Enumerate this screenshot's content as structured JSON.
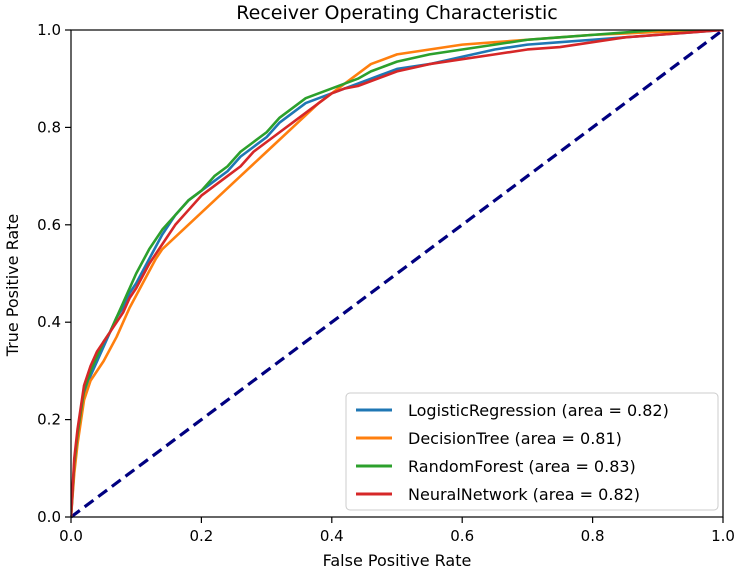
{
  "chart_data": {
    "type": "line",
    "title": "Receiver Operating Characteristic",
    "xlabel": "False Positive Rate",
    "ylabel": "True Positive Rate",
    "xlim": [
      0.0,
      1.0
    ],
    "ylim": [
      0.0,
      1.0
    ],
    "xticks": [
      "0.0",
      "0.2",
      "0.4",
      "0.6",
      "0.8",
      "1.0"
    ],
    "yticks": [
      "0.0",
      "0.2",
      "0.4",
      "0.6",
      "0.8",
      "1.0"
    ],
    "grid": false,
    "legend_position": "lower-right",
    "series": [
      {
        "name": "LogisticRegression (area = 0.82)",
        "color": "#1f77b4",
        "x": [
          0.0,
          0.005,
          0.01,
          0.02,
          0.03,
          0.04,
          0.05,
          0.06,
          0.07,
          0.08,
          0.09,
          0.1,
          0.12,
          0.14,
          0.16,
          0.18,
          0.2,
          0.22,
          0.24,
          0.26,
          0.28,
          0.3,
          0.32,
          0.34,
          0.36,
          0.38,
          0.4,
          0.42,
          0.44,
          0.46,
          0.48,
          0.5,
          0.55,
          0.6,
          0.65,
          0.7,
          0.75,
          0.8,
          0.85,
          0.9,
          0.95,
          1.0
        ],
        "y": [
          0.0,
          0.1,
          0.16,
          0.25,
          0.29,
          0.32,
          0.35,
          0.38,
          0.41,
          0.43,
          0.46,
          0.48,
          0.53,
          0.58,
          0.62,
          0.65,
          0.67,
          0.69,
          0.71,
          0.74,
          0.76,
          0.78,
          0.81,
          0.83,
          0.85,
          0.86,
          0.87,
          0.88,
          0.89,
          0.9,
          0.91,
          0.92,
          0.93,
          0.945,
          0.96,
          0.97,
          0.975,
          0.98,
          0.985,
          0.99,
          0.995,
          1.0
        ]
      },
      {
        "name": "DecisionTree (area = 0.81)",
        "color": "#ff7f0e",
        "x": [
          0.0,
          0.005,
          0.01,
          0.02,
          0.03,
          0.05,
          0.07,
          0.09,
          0.11,
          0.13,
          0.14,
          0.18,
          0.22,
          0.26,
          0.3,
          0.34,
          0.38,
          0.4,
          0.42,
          0.44,
          0.46,
          0.5,
          0.55,
          0.6,
          0.65,
          0.7,
          0.75,
          0.8,
          0.85,
          0.9,
          0.95,
          1.0
        ],
        "y": [
          0.0,
          0.09,
          0.15,
          0.24,
          0.28,
          0.32,
          0.37,
          0.43,
          0.48,
          0.53,
          0.55,
          0.6,
          0.65,
          0.7,
          0.75,
          0.8,
          0.85,
          0.87,
          0.89,
          0.91,
          0.93,
          0.95,
          0.96,
          0.97,
          0.975,
          0.98,
          0.985,
          0.99,
          0.993,
          0.996,
          0.998,
          1.0
        ]
      },
      {
        "name": "RandomForest (area = 0.83)",
        "color": "#2ca02c",
        "x": [
          0.0,
          0.005,
          0.01,
          0.02,
          0.03,
          0.04,
          0.05,
          0.06,
          0.07,
          0.08,
          0.09,
          0.1,
          0.12,
          0.14,
          0.16,
          0.18,
          0.2,
          0.22,
          0.24,
          0.26,
          0.28,
          0.3,
          0.32,
          0.34,
          0.36,
          0.38,
          0.4,
          0.42,
          0.44,
          0.46,
          0.48,
          0.5,
          0.55,
          0.6,
          0.65,
          0.7,
          0.75,
          0.8,
          0.85,
          0.9,
          0.95,
          1.0
        ],
        "y": [
          0.0,
          0.11,
          0.17,
          0.26,
          0.3,
          0.33,
          0.36,
          0.38,
          0.41,
          0.44,
          0.47,
          0.5,
          0.55,
          0.59,
          0.62,
          0.65,
          0.67,
          0.7,
          0.72,
          0.75,
          0.77,
          0.79,
          0.82,
          0.84,
          0.86,
          0.87,
          0.88,
          0.89,
          0.9,
          0.915,
          0.925,
          0.935,
          0.95,
          0.96,
          0.97,
          0.98,
          0.985,
          0.99,
          0.995,
          1.0,
          1.0,
          1.0
        ]
      },
      {
        "name": "NeuralNetwork (area = 0.82)",
        "color": "#d62728",
        "x": [
          0.0,
          0.005,
          0.01,
          0.02,
          0.03,
          0.04,
          0.05,
          0.06,
          0.07,
          0.08,
          0.09,
          0.1,
          0.12,
          0.14,
          0.16,
          0.18,
          0.2,
          0.22,
          0.24,
          0.26,
          0.28,
          0.3,
          0.32,
          0.34,
          0.36,
          0.38,
          0.4,
          0.42,
          0.44,
          0.46,
          0.48,
          0.5,
          0.55,
          0.6,
          0.65,
          0.7,
          0.75,
          0.8,
          0.85,
          0.9,
          0.95,
          1.0
        ],
        "y": [
          0.0,
          0.12,
          0.18,
          0.27,
          0.31,
          0.34,
          0.36,
          0.38,
          0.4,
          0.42,
          0.45,
          0.47,
          0.52,
          0.56,
          0.6,
          0.63,
          0.66,
          0.68,
          0.7,
          0.72,
          0.75,
          0.77,
          0.79,
          0.81,
          0.83,
          0.85,
          0.87,
          0.88,
          0.885,
          0.895,
          0.905,
          0.915,
          0.93,
          0.94,
          0.95,
          0.96,
          0.965,
          0.975,
          0.985,
          0.99,
          0.995,
          1.0
        ]
      }
    ],
    "reference_line": {
      "x": [
        0.0,
        1.0
      ],
      "y": [
        0.0,
        1.0
      ],
      "color": "#000080",
      "style": "dashed"
    }
  }
}
